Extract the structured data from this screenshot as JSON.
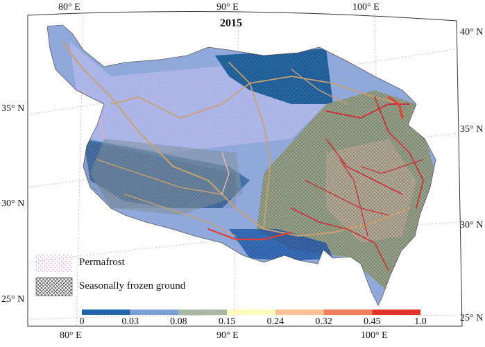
{
  "map": {
    "title": "2015",
    "top_ticks": [
      "80° E",
      "90° E",
      "100° E"
    ],
    "bottom_ticks": [
      "80° E",
      "90° E",
      "100° E"
    ],
    "left_ticks": [
      "35° N",
      "30° N",
      "25° N"
    ],
    "right_ticks": [
      "40° N",
      "35° N",
      "30° N",
      "25° N"
    ]
  },
  "legend": {
    "permafrost_label": "Permafrost",
    "seasonal_label": "Seasonally frozen ground"
  },
  "colorbar": {
    "ticks": [
      "0",
      "0.03",
      "0.08",
      "0.15",
      "0.24",
      "0.32",
      "0.45",
      "1.0"
    ],
    "colors": [
      "#2166ac",
      "#7a9fd4",
      "#a9b8a4",
      "#fdfac0",
      "#fdc195",
      "#ef7f5f",
      "#e3312c"
    ]
  },
  "colors": {
    "permafrost_deep": "#1d5f99",
    "permafrost_mid": "#6b8fd0",
    "permafrost_light": "#aab7e8",
    "seasonal_green": "#9aa98a",
    "road_red": "#c8323a",
    "road_tan": "#c9a070"
  }
}
